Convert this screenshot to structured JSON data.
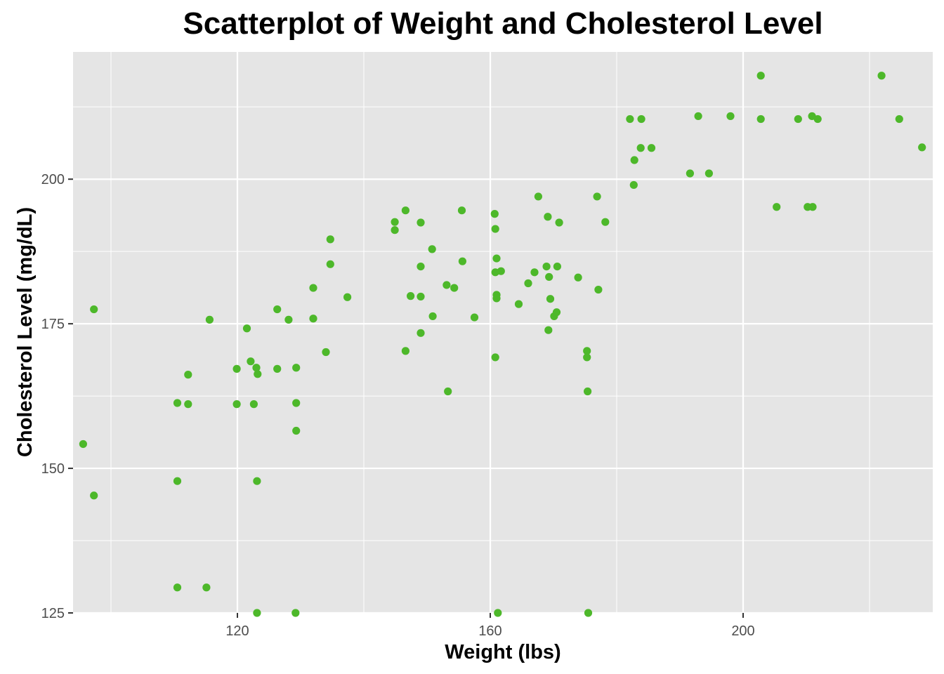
{
  "chart_data": {
    "type": "scatter",
    "title": "Scatterplot of Weight and Cholesterol Level",
    "xlabel": "Weight (lbs)",
    "ylabel": "Cholesterol Level (mg/dL)",
    "xlim": [
      94,
      230
    ],
    "ylim": [
      125,
      222
    ],
    "x_ticks": [
      120,
      160,
      200
    ],
    "x_tick_labels": [
      "120",
      "160",
      "200"
    ],
    "x_minor_ticks": [
      100,
      140,
      180,
      220
    ],
    "y_ticks": [
      125,
      150,
      175,
      200
    ],
    "y_tick_labels": [
      "125",
      "150",
      "175",
      "200"
    ],
    "y_minor_ticks": [
      137.5,
      162.5,
      187.5,
      212.5
    ],
    "grid": true,
    "legend": "none",
    "colors": {
      "panel_background": "#e5e5e5",
      "grid_line": "#ffffff",
      "point": "#4db82a"
    },
    "series": [
      {
        "x": [
          95.6,
          97.3,
          97.3,
          110.5,
          110.5,
          110.5,
          112.2,
          112.2,
          115.1,
          115.6,
          119.9,
          119.9,
          121.5,
          122.1,
          122.6,
          123.0,
          123.2,
          123.1,
          123.1,
          126.3,
          126.3,
          128.1,
          129.3,
          129.3,
          129.3,
          129.2,
          132.0,
          132.0,
          134.0,
          134.7,
          134.7,
          137.4,
          144.9,
          144.9,
          146.6,
          146.6,
          147.4,
          149.0,
          149.0,
          149.0,
          149.0,
          150.8,
          150.9,
          153.1,
          153.3,
          154.3,
          155.5,
          155.6,
          157.5,
          160.7,
          160.8,
          160.8,
          160.8,
          161.0,
          161.0,
          161.0,
          161.2,
          161.7,
          164.5,
          166.0,
          167.0,
          167.6,
          168.9,
          169.1,
          169.2,
          169.3,
          169.5,
          170.1,
          170.6,
          170.5,
          170.9,
          173.9,
          175.3,
          175.3,
          175.4,
          175.5,
          176.9,
          177.1,
          178.2,
          182.1,
          182.7,
          182.8,
          183.8,
          183.9,
          185.5,
          191.6,
          192.9,
          194.6,
          198.0,
          202.8,
          202.8,
          205.3,
          208.7,
          210.2,
          210.9,
          211.0,
          211.8,
          221.9,
          224.7,
          228.3
        ],
        "y": [
          154.2,
          145.3,
          177.5,
          147.8,
          161.3,
          129.4,
          166.2,
          161.1,
          129.4,
          175.7,
          167.2,
          161.1,
          174.2,
          168.5,
          161.1,
          167.4,
          166.3,
          147.8,
          125.0,
          177.5,
          167.2,
          175.7,
          161.3,
          156.5,
          167.4,
          125.0,
          181.2,
          175.9,
          170.1,
          189.6,
          185.3,
          179.6,
          191.2,
          192.6,
          194.6,
          170.3,
          179.8,
          184.9,
          192.5,
          179.7,
          173.4,
          187.9,
          176.3,
          181.7,
          163.3,
          181.2,
          194.6,
          185.8,
          176.1,
          194.0,
          191.4,
          169.2,
          183.9,
          186.3,
          180.0,
          179.4,
          125.0,
          184.1,
          178.4,
          182.0,
          183.9,
          197.0,
          184.9,
          193.5,
          173.9,
          183.1,
          179.3,
          176.3,
          184.9,
          177.0,
          192.5,
          183.0,
          170.3,
          169.2,
          163.3,
          125.0,
          197.0,
          180.9,
          192.6,
          210.4,
          199.0,
          203.3,
          205.4,
          210.4,
          205.4,
          201.0,
          210.9,
          201.0,
          210.9,
          217.9,
          210.4,
          195.2,
          210.4,
          195.2,
          210.9,
          195.2,
          210.4,
          217.9,
          210.4,
          205.5
        ]
      }
    ]
  }
}
